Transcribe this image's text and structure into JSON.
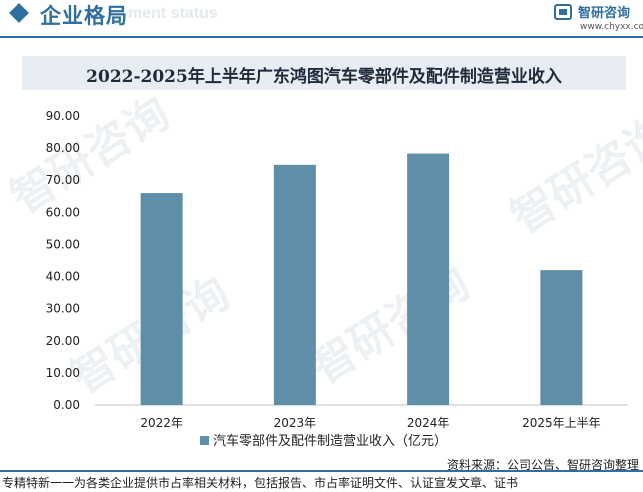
{
  "header": {
    "title": "企业格局",
    "ghost_text": "ment status",
    "brand_name": "智研咨询",
    "brand_url": "www.chyxx.com",
    "accent_color": "#2f6f9f"
  },
  "watermark_text": "智研咨询",
  "chart_data": {
    "type": "bar",
    "title": "2022-2025年上半年广东鸿图汽车零部件及配件制造营业收入",
    "categories": [
      "2022年",
      "2023年",
      "2024年",
      "2025年上半年"
    ],
    "series": [
      {
        "name": "汽车零部件及配件制造营业收入（亿元）",
        "values": [
          66.0,
          74.8,
          78.3,
          42.0
        ],
        "color": "#5f8fa8"
      }
    ],
    "yticks": [
      "0.00",
      "10.00",
      "20.00",
      "30.00",
      "40.00",
      "50.00",
      "60.00",
      "70.00",
      "80.00",
      "90.00"
    ],
    "ylim": [
      0,
      90
    ],
    "grid": false,
    "legend_position": "bottom"
  },
  "footer": {
    "source": "资料来源：公司公告、智研咨询整理",
    "tagline": "专精特新一一为各类企业提供市占率相关材料，包括报告、市占率证明文件、认证宣发文章、证书"
  }
}
